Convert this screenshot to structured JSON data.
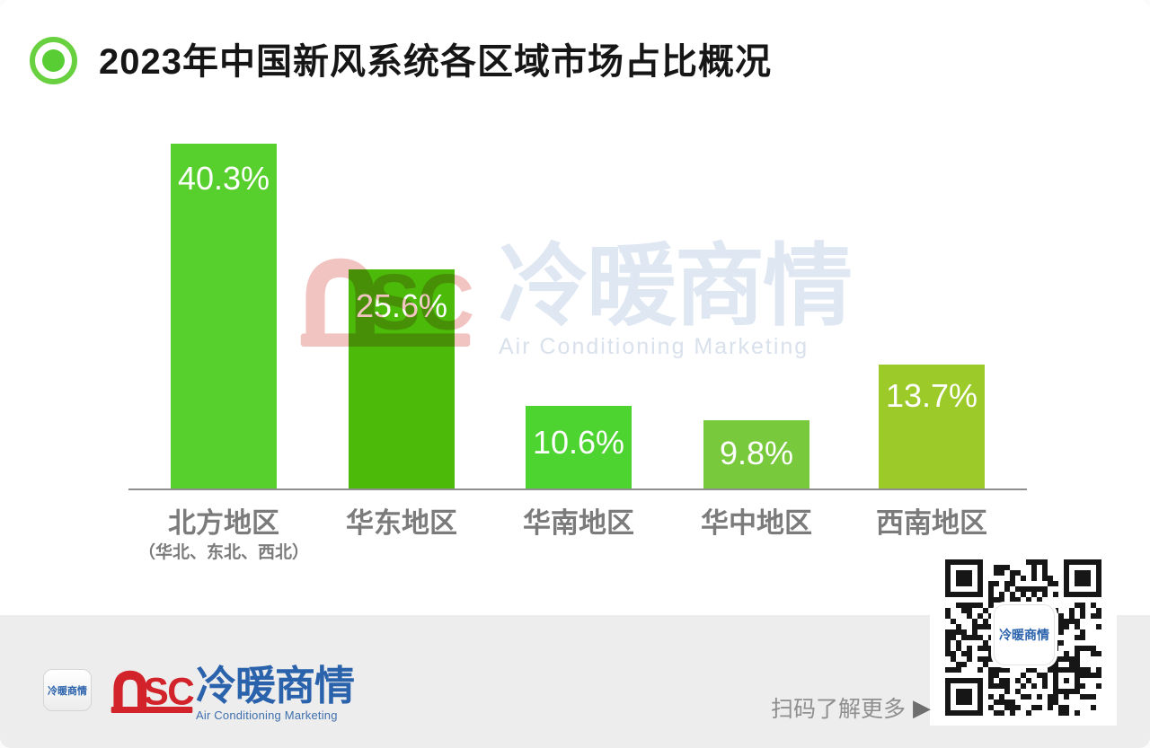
{
  "page": {
    "background": "#ffffff",
    "band_color": "#ededed"
  },
  "header": {
    "title": "2023年中国新风系统各区域市场占比概况",
    "bullet_icon": "green-ring-dot",
    "icon_ring_color": "#69d140",
    "icon_dot_color": "#58ce34"
  },
  "chart_data": {
    "type": "bar",
    "title": "2023年中国新风系统各区域市场占比概况",
    "categories": [
      "北方地区",
      "华东地区",
      "华南地区",
      "华中地区",
      "西南地区"
    ],
    "category_subnotes": [
      "（华北、东北、西北）",
      "",
      "",
      "",
      ""
    ],
    "values": [
      40.3,
      25.6,
      10.6,
      9.8,
      13.7
    ],
    "value_labels": [
      "40.3%",
      "25.6%",
      "10.6%",
      "9.8%",
      "13.7%"
    ],
    "unit": "%",
    "bar_colors": [
      "#57d02d",
      "#4bba08",
      "#4ed431",
      "#79c93d",
      "#9cca28"
    ],
    "value_label_color": "#ffffff",
    "axis_label_color": "#7b7b7b",
    "axis_line_color": "#8e8e8e",
    "ylim": [
      0,
      45
    ],
    "grid": false,
    "legend": false
  },
  "watermark": {
    "logo": "nsc-logo",
    "brand_cn": "冷暖商情",
    "brand_en": "Air Conditioning Marketing",
    "logo_color": "#f2c4c1",
    "text_color": "#dee7f2"
  },
  "footer": {
    "app_icon_text": "冷暖商情",
    "nsc_logo_color": "#d3232a",
    "brand_cn": "冷暖商情",
    "brand_en": "Air Conditioning Marketing",
    "brand_color": "#2b62ac",
    "scan_label": "扫码了解更多",
    "arrow_icon": "▶",
    "qr_center_text": "冷暖商情"
  }
}
